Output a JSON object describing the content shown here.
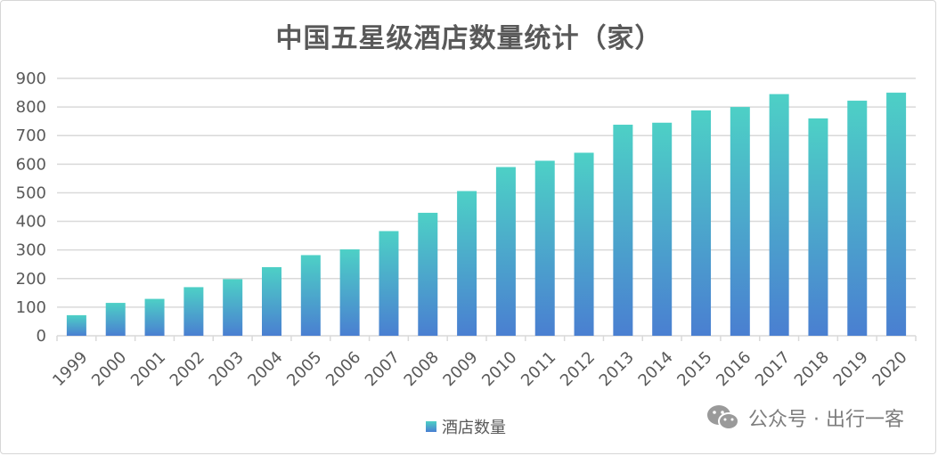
{
  "chart_data": {
    "type": "bar",
    "title": "中国五星级酒店数量统计（家）",
    "categories": [
      "1999",
      "2000",
      "2001",
      "2002",
      "2003",
      "2004",
      "2005",
      "2006",
      "2007",
      "2008",
      "2009",
      "2010",
      "2011",
      "2012",
      "2013",
      "2014",
      "2015",
      "2016",
      "2017",
      "2018",
      "2019",
      "2020"
    ],
    "series": [
      {
        "name": "酒店数量",
        "values": [
          72,
          115,
          129,
          170,
          198,
          240,
          282,
          302,
          366,
          430,
          506,
          590,
          612,
          640,
          738,
          745,
          788,
          800,
          845,
          760,
          822,
          850
        ]
      }
    ],
    "ylim": [
      0,
      900
    ],
    "yticks": [
      0,
      100,
      200,
      300,
      400,
      500,
      600,
      700,
      800,
      900
    ],
    "xlabel": "",
    "ylabel": "",
    "grid": true,
    "legend": "bottom-center",
    "colors": {
      "bar_top": "#4dd0c6",
      "bar_bottom": "#4a7fd1",
      "grid": "#d9d9d9",
      "axis_text": "#595959"
    }
  },
  "watermark": {
    "text": "公众号 · 出行一客",
    "icon": "wechat-icon"
  }
}
